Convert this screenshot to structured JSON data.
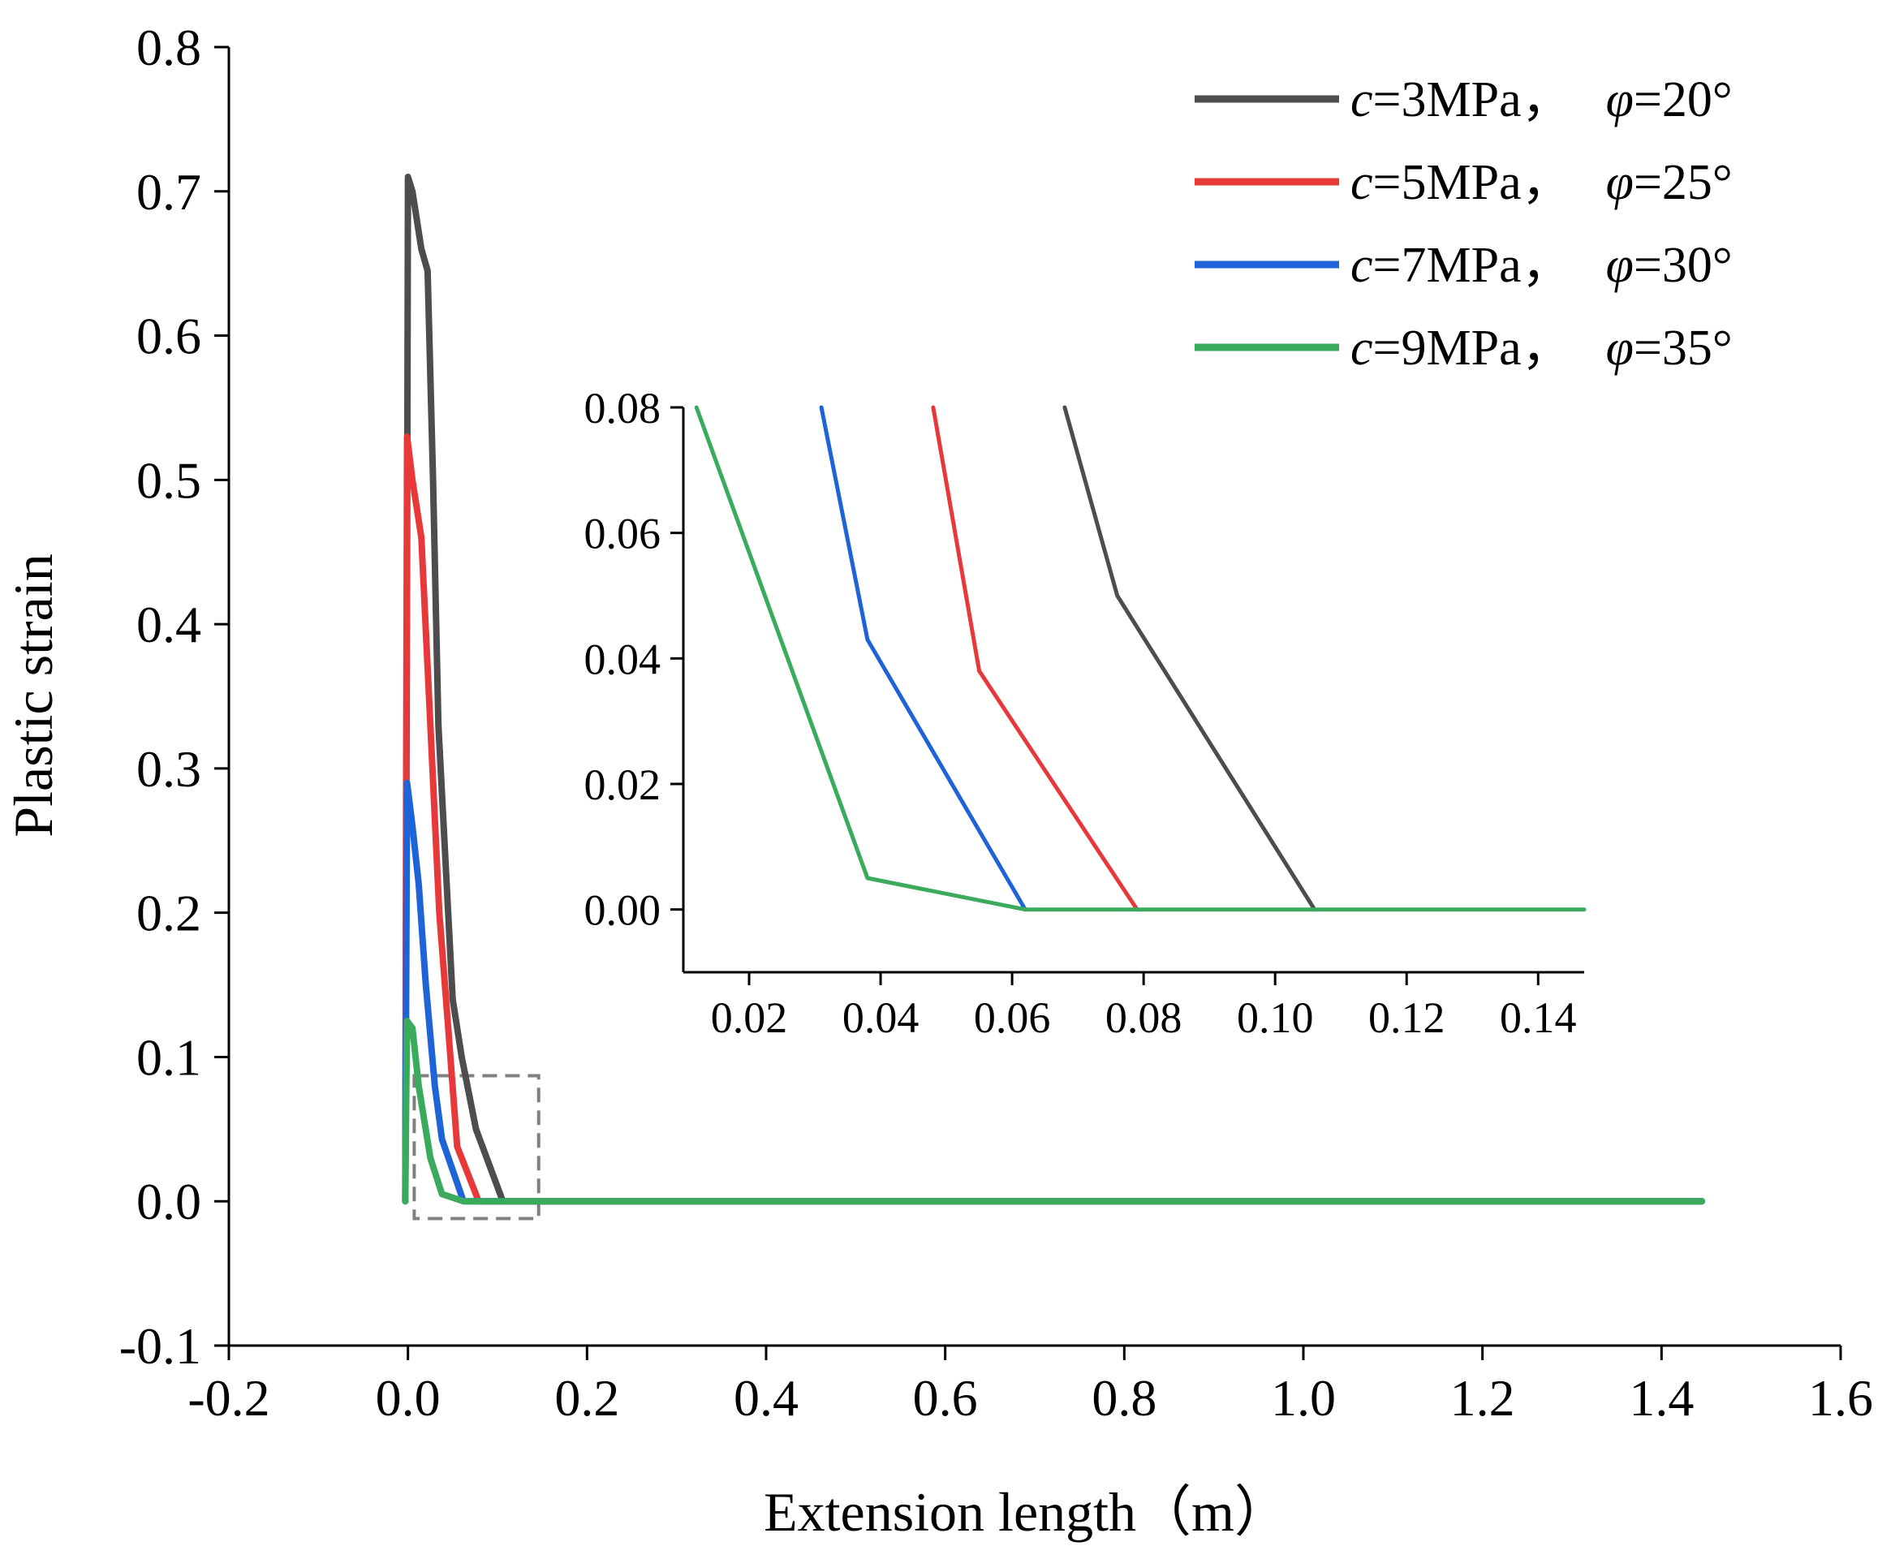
{
  "chart_data": [
    {
      "type": "line",
      "name": "main",
      "xlabel": "Extension length（m）",
      "ylabel": "Plastic strain",
      "xlim": [
        -0.2,
        1.6
      ],
      "ylim": [
        -0.1,
        0.8
      ],
      "xticks": [
        "-0.2",
        "0.0",
        "0.2",
        "0.4",
        "0.6",
        "0.8",
        "1.0",
        "1.2",
        "1.4",
        "1.6"
      ],
      "yticks": [
        "-0.1",
        "0.0",
        "0.1",
        "0.2",
        "0.3",
        "0.4",
        "0.5",
        "0.6",
        "0.7",
        "0.8"
      ],
      "zoom_box": {
        "x": [
          0.007,
          0.146
        ],
        "y": [
          -0.012,
          0.087
        ]
      },
      "series": [
        {
          "name": "c=3MPa， φ=20°",
          "c_label": "c",
          "c_value": "=3MPa，",
          "phi_label": "φ",
          "phi_value": "=20°",
          "color": "#4d4d4d",
          "points": [
            [
              -0.003,
              0.0
            ],
            [
              -0.001,
              0.45
            ],
            [
              0.0,
              0.71
            ],
            [
              0.005,
              0.7
            ],
            [
              0.015,
              0.66
            ],
            [
              0.022,
              0.645
            ],
            [
              0.028,
              0.5
            ],
            [
              0.034,
              0.33
            ],
            [
              0.05,
              0.14
            ],
            [
              0.06,
              0.1
            ],
            [
              0.076,
              0.05
            ],
            [
              0.106,
              0.0
            ],
            [
              1.445,
              0.0
            ]
          ]
        },
        {
          "name": "c=5MPa， φ=25°",
          "c_label": "c",
          "c_value": "=5MPa，",
          "phi_label": "φ",
          "phi_value": "=25°",
          "color": "#e8393a",
          "points": [
            [
              -0.003,
              0.0
            ],
            [
              -0.002,
              0.3
            ],
            [
              -0.001,
              0.53
            ],
            [
              0.005,
              0.5
            ],
            [
              0.015,
              0.46
            ],
            [
              0.025,
              0.33
            ],
            [
              0.035,
              0.2
            ],
            [
              0.045,
              0.12
            ],
            [
              0.055,
              0.038
            ],
            [
              0.079,
              0.0
            ],
            [
              1.445,
              0.0
            ]
          ]
        },
        {
          "name": "c=7MPa， φ=30°",
          "c_label": "c",
          "c_value": "=7MPa，",
          "phi_label": "φ",
          "phi_value": "=30°",
          "color": "#1e64d8",
          "points": [
            [
              -0.003,
              0.0
            ],
            [
              -0.002,
              0.15
            ],
            [
              -0.001,
              0.29
            ],
            [
              0.005,
              0.26
            ],
            [
              0.012,
              0.22
            ],
            [
              0.02,
              0.15
            ],
            [
              0.03,
              0.08
            ],
            [
              0.038,
              0.043
            ],
            [
              0.062,
              0.0
            ],
            [
              1.445,
              0.0
            ]
          ]
        },
        {
          "name": "c=9MPa， φ=35°",
          "c_label": "c",
          "c_value": "=9MPa，",
          "phi_label": "φ",
          "phi_value": "=35°",
          "color": "#3aab5c",
          "points": [
            [
              -0.003,
              0.0
            ],
            [
              -0.002,
              0.07
            ],
            [
              -0.001,
              0.125
            ],
            [
              0.005,
              0.12
            ],
            [
              0.012,
              0.08
            ],
            [
              0.025,
              0.03
            ],
            [
              0.038,
              0.005
            ],
            [
              0.062,
              0.0
            ],
            [
              1.445,
              0.0
            ]
          ]
        }
      ]
    },
    {
      "type": "line",
      "name": "inset",
      "xlim": [
        0.01,
        0.147
      ],
      "ylim": [
        -0.01,
        0.08
      ],
      "xticks": [
        "0.02",
        "0.04",
        "0.06",
        "0.08",
        "0.10",
        "0.12",
        "0.14"
      ],
      "yticks": [
        "0.00",
        "0.02",
        "0.04",
        "0.06",
        "0.08"
      ],
      "series": [
        {
          "name": "c=3MPa， φ=20°",
          "color": "#4d4d4d",
          "points": [
            [
              0.068,
              0.08
            ],
            [
              0.076,
              0.05
            ],
            [
              0.106,
              0.0
            ]
          ]
        },
        {
          "name": "c=5MPa， φ=25°",
          "color": "#e8393a",
          "points": [
            [
              0.048,
              0.08
            ],
            [
              0.055,
              0.038
            ],
            [
              0.079,
              0.0
            ]
          ]
        },
        {
          "name": "c=7MPa， φ=30°",
          "color": "#1e64d8",
          "points": [
            [
              0.031,
              0.08
            ],
            [
              0.038,
              0.043
            ],
            [
              0.062,
              0.0
            ]
          ]
        },
        {
          "name": "c=9MPa， φ=35°",
          "color": "#3aab5c",
          "points": [
            [
              0.012,
              0.08
            ],
            [
              0.038,
              0.005
            ],
            [
              0.062,
              0.0
            ],
            [
              0.147,
              0.0
            ]
          ]
        }
      ]
    }
  ]
}
